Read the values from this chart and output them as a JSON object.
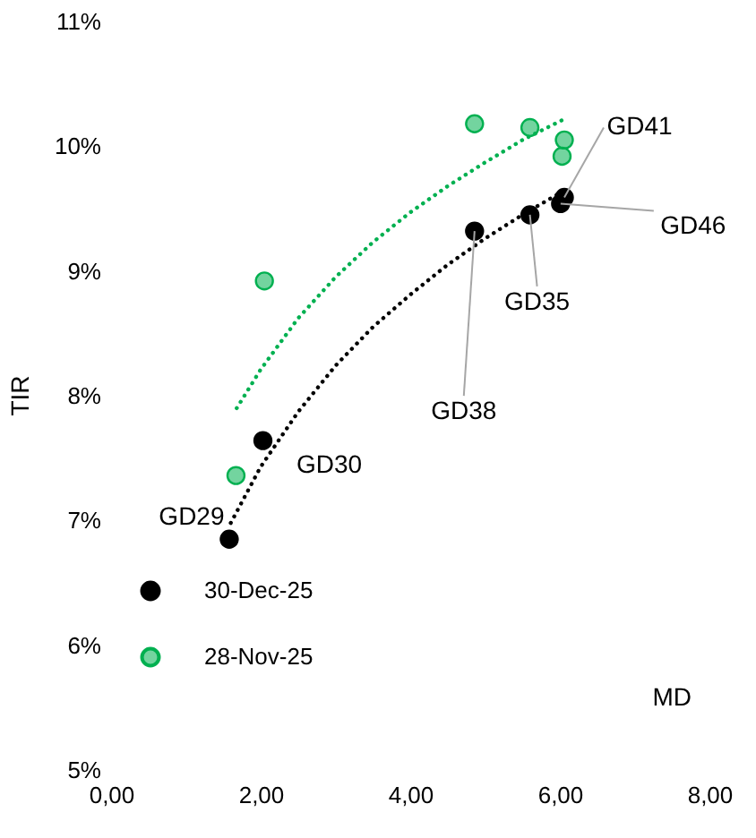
{
  "chart_data": {
    "type": "scatter",
    "xlabel": "MD",
    "ylabel": "TIR",
    "xlim": [
      0,
      8
    ],
    "xticks": [
      {
        "value": 0,
        "label": "0,00"
      },
      {
        "value": 2,
        "label": "2,00"
      },
      {
        "value": 4,
        "label": "4,00"
      },
      {
        "value": 6,
        "label": "6,00"
      },
      {
        "value": 8,
        "label": "8,00"
      }
    ],
    "ylim": [
      5,
      11
    ],
    "yticks": [
      {
        "value": 5,
        "label": "5%"
      },
      {
        "value": 6,
        "label": "6%"
      },
      {
        "value": 7,
        "label": "7%"
      },
      {
        "value": 8,
        "label": "8%"
      },
      {
        "value": 9,
        "label": "9%"
      },
      {
        "value": 10,
        "label": "10%"
      },
      {
        "value": 11,
        "label": "11%"
      }
    ],
    "grid": false,
    "legend": "bottom left",
    "marker": "circle",
    "series": [
      {
        "name": "30-Dec-25",
        "color": "#000000",
        "x": [
          1.58,
          2.03,
          4.86,
          5.6,
          6.01,
          6.06
        ],
        "values": [
          6.85,
          7.64,
          9.32,
          9.45,
          9.54,
          9.59
        ]
      },
      {
        "name": "28-Nov-25",
        "color": "#00b050",
        "x": [
          1.67,
          2.05,
          4.86,
          5.6,
          6.03,
          6.06
        ],
        "values": [
          7.36,
          8.92,
          10.18,
          10.15,
          9.92,
          10.05
        ]
      },
      {
        "type": "line",
        "line_style": "dotted",
        "marker": "none",
        "color": "#000000",
        "x": [
          1.6,
          2,
          2.5,
          3,
          3.5,
          4,
          4.5,
          5,
          5.5,
          6.1
        ],
        "values": [
          6.98,
          7.43,
          7.87,
          8.24,
          8.55,
          8.81,
          9.05,
          9.26,
          9.45,
          9.66
        ]
      },
      {
        "type": "line",
        "line_style": "dotted",
        "marker": "none",
        "color": "#00b050",
        "x": [
          1.68,
          2,
          2.5,
          3,
          3.5,
          4,
          4.5,
          5,
          5.5,
          6.1
        ],
        "values": [
          7.9,
          8.21,
          8.62,
          8.95,
          9.23,
          9.47,
          9.68,
          9.87,
          10.05,
          10.23
        ]
      }
    ],
    "annotations": [
      {
        "text": "GD29",
        "x": 1.58,
        "y": 6.85
      },
      {
        "text": "GD30",
        "x": 2.03,
        "y": 7.64
      },
      {
        "text": "GD38",
        "x": 4.86,
        "y": 9.32
      },
      {
        "text": "GD35",
        "x": 5.6,
        "y": 9.45
      },
      {
        "text": "GD46",
        "x": 6.01,
        "y": 9.54
      },
      {
        "text": "GD41",
        "x": 6.06,
        "y": 9.59
      }
    ]
  }
}
